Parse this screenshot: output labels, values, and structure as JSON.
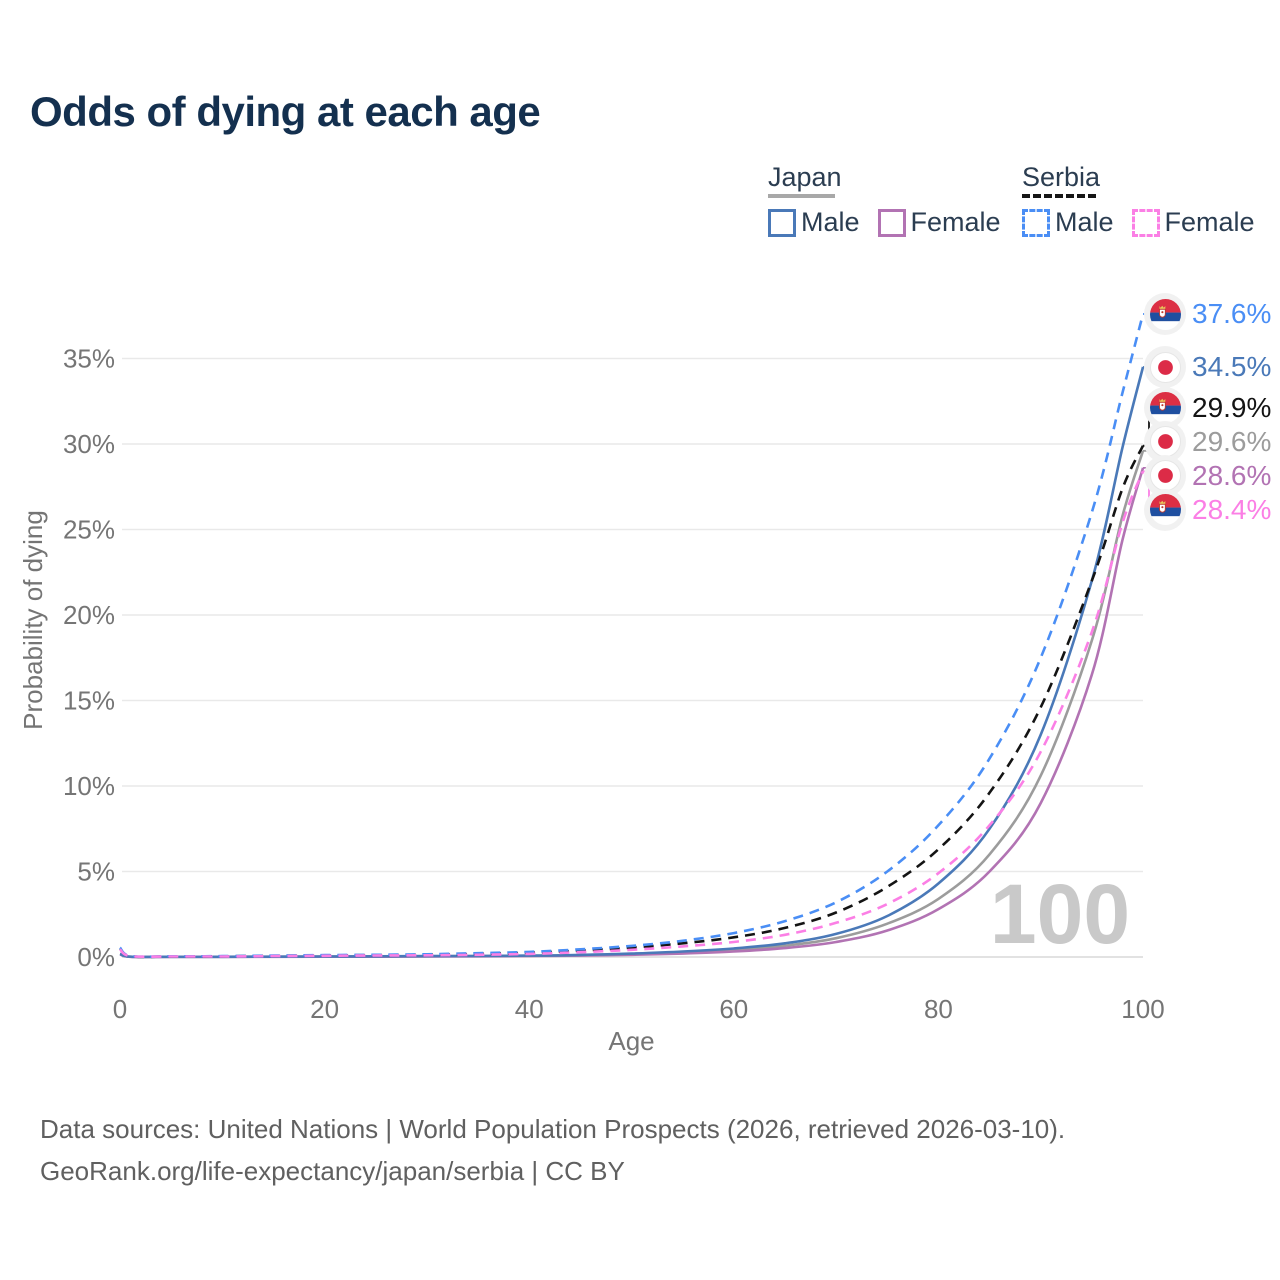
{
  "title": "Odds of dying at each age",
  "legend": {
    "groups": [
      {
        "id": "japan",
        "label": "Japan",
        "line_style": "solid",
        "underline_color": "#a8a8a8",
        "items": [
          {
            "id": "japan_male",
            "label": "Male",
            "color": "#4a79b8"
          },
          {
            "id": "japan_female",
            "label": "Female",
            "color": "#b273b3"
          }
        ]
      },
      {
        "id": "serbia",
        "label": "Serbia",
        "line_style": "dashed",
        "underline_color": "#161616",
        "items": [
          {
            "id": "serbia_male",
            "label": "Male",
            "color": "#4a8ef5"
          },
          {
            "id": "serbia_female",
            "label": "Female",
            "color": "#fb7fe5"
          }
        ]
      }
    ]
  },
  "chart_data": {
    "type": "line",
    "title": "Odds of dying at each age",
    "xlabel": "Age",
    "ylabel": "Probability of dying",
    "xlim": [
      0,
      100
    ],
    "ylim_pct": [
      0,
      38
    ],
    "x_ticks": [
      0,
      20,
      40,
      60,
      80,
      100
    ],
    "y_ticks_pct": [
      0,
      5,
      10,
      15,
      20,
      25,
      30,
      35
    ],
    "grid": "horizontal",
    "legend_position": "top-right",
    "watermark": "100",
    "ages": [
      0,
      1,
      5,
      10,
      15,
      20,
      25,
      30,
      35,
      40,
      45,
      50,
      55,
      60,
      65,
      70,
      75,
      80,
      85,
      90,
      95,
      98,
      100
    ],
    "series": [
      {
        "id": "japan_total",
        "name": "Japan",
        "country": "japan",
        "color": "#9c9c9c",
        "dashed": false,
        "values_pct": [
          0.17,
          0.02,
          0.01,
          0.01,
          0.02,
          0.03,
          0.03,
          0.04,
          0.05,
          0.07,
          0.1,
          0.16,
          0.26,
          0.42,
          0.66,
          1.1,
          1.95,
          3.4,
          6.0,
          10.6,
          18.5,
          25.8,
          29.6
        ]
      },
      {
        "id": "japan_female",
        "name": "Japan Female",
        "country": "japan",
        "color": "#b273b3",
        "dashed": false,
        "values_pct": [
          0.16,
          0.01,
          0.01,
          0.01,
          0.01,
          0.02,
          0.02,
          0.03,
          0.04,
          0.06,
          0.08,
          0.13,
          0.2,
          0.32,
          0.52,
          0.88,
          1.55,
          2.8,
          5.0,
          9.0,
          16.5,
          24.4,
          28.6
        ]
      },
      {
        "id": "japan_male",
        "name": "Japan Male",
        "country": "japan",
        "color": "#4a79b8",
        "dashed": false,
        "values_pct": [
          0.18,
          0.02,
          0.01,
          0.01,
          0.02,
          0.03,
          0.04,
          0.05,
          0.06,
          0.08,
          0.12,
          0.2,
          0.32,
          0.5,
          0.8,
          1.35,
          2.4,
          4.3,
          7.5,
          13.0,
          22.0,
          29.8,
          34.5
        ]
      },
      {
        "id": "serbia_total",
        "name": "Serbia",
        "country": "serbia",
        "color": "#141414",
        "dashed": true,
        "values_pct": [
          0.5,
          0.05,
          0.03,
          0.04,
          0.07,
          0.09,
          0.11,
          0.13,
          0.18,
          0.25,
          0.37,
          0.55,
          0.8,
          1.15,
          1.7,
          2.6,
          4.1,
          6.3,
          9.6,
          14.6,
          22.0,
          27.4,
          29.9
        ]
      },
      {
        "id": "serbia_male",
        "name": "Serbia Male",
        "country": "serbia",
        "color": "#4a8ef5",
        "dashed": true,
        "values_pct": [
          0.55,
          0.06,
          0.04,
          0.05,
          0.08,
          0.11,
          0.13,
          0.16,
          0.22,
          0.3,
          0.45,
          0.65,
          0.95,
          1.4,
          2.1,
          3.2,
          5.0,
          7.7,
          11.6,
          17.5,
          26.0,
          33.0,
          37.6
        ]
      },
      {
        "id": "serbia_female",
        "name": "Serbia Female",
        "country": "serbia",
        "color": "#fb7fe5",
        "dashed": true,
        "values_pct": [
          0.45,
          0.05,
          0.03,
          0.03,
          0.05,
          0.07,
          0.09,
          0.1,
          0.13,
          0.18,
          0.28,
          0.42,
          0.62,
          0.88,
          1.3,
          2.0,
          3.1,
          4.9,
          7.7,
          12.0,
          19.0,
          25.4,
          28.4
        ]
      }
    ],
    "end_labels": [
      {
        "series": "serbia_male",
        "text": "37.6%",
        "value_pct": 37.6,
        "flag": "serbia",
        "color": "#4a8ef5"
      },
      {
        "series": "japan_male",
        "text": "34.5%",
        "value_pct": 34.5,
        "flag": "japan",
        "color": "#4a79b8"
      },
      {
        "series": "serbia_total",
        "text": "29.9%",
        "value_pct": 29.9,
        "flag": "serbia",
        "color": "#141414"
      },
      {
        "series": "japan_total",
        "text": "29.6%",
        "value_pct": 29.6,
        "flag": "japan",
        "color": "#9c9c9c"
      },
      {
        "series": "japan_female",
        "text": "28.6%",
        "value_pct": 28.6,
        "flag": "japan",
        "color": "#b273b3"
      },
      {
        "series": "serbia_female",
        "text": "28.4%",
        "value_pct": 28.4,
        "flag": "serbia",
        "color": "#fb7fe5"
      }
    ]
  },
  "footer": {
    "line1": "Data sources: United Nations | World Population Prospects (2026, retrieved 2026-03-10).",
    "line2": "GeoRank.org/life-expectancy/japan/serbia | CC BY"
  }
}
